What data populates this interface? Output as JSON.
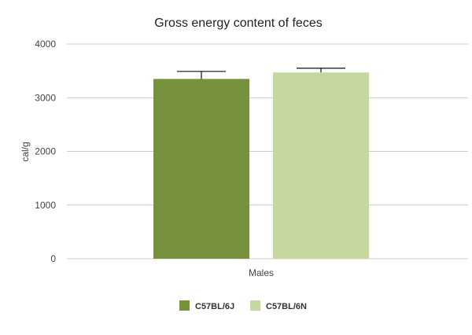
{
  "chart_data": {
    "type": "bar",
    "title": "Gross energy content of feces",
    "xlabel": "",
    "ylabel": "cal/g",
    "categories": [
      "Males"
    ],
    "ylim": [
      0,
      4000
    ],
    "yticks": [
      0,
      1000,
      2000,
      3000,
      4000
    ],
    "grid": true,
    "legend_position": "bottom",
    "series": [
      {
        "name": "C57BL/6J",
        "values": [
          3350
        ],
        "error": [
          140
        ],
        "color": "#76923c"
      },
      {
        "name": "C57BL/6N",
        "values": [
          3470
        ],
        "error": [
          80
        ],
        "color": "#c4d89f"
      }
    ]
  }
}
